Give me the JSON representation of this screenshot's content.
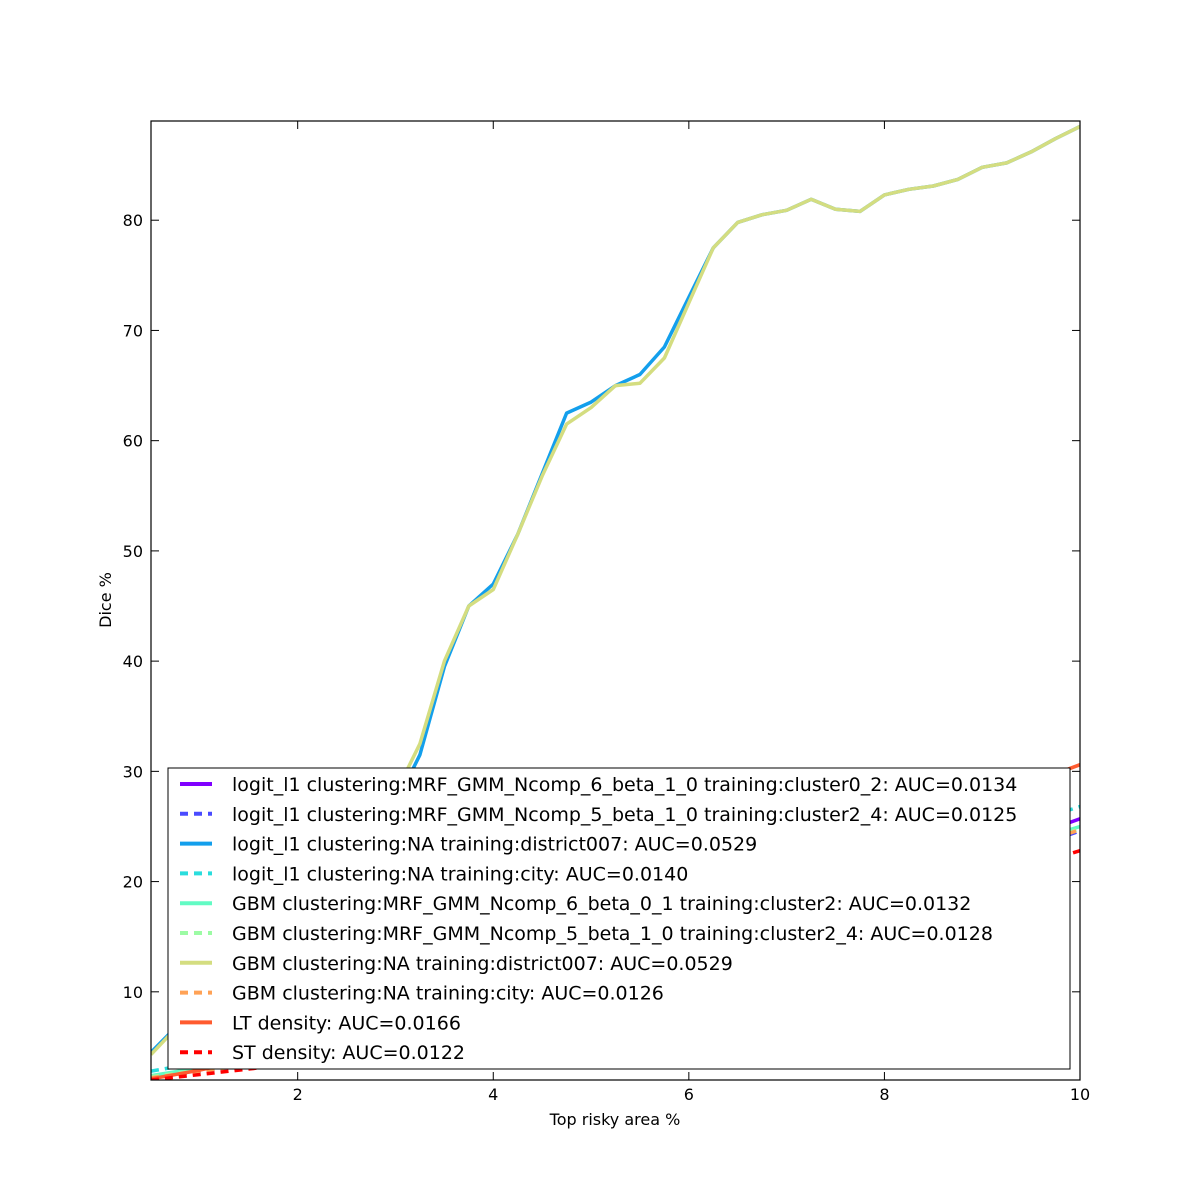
{
  "chart_data": {
    "type": "line",
    "xlabel": "Top risky area %",
    "ylabel": "Dice %",
    "xlim": [
      0.5,
      10
    ],
    "ylim": [
      2,
      89
    ],
    "xticks": [
      2,
      4,
      6,
      8,
      10
    ],
    "yticks": [
      10,
      20,
      30,
      40,
      50,
      60,
      70,
      80
    ],
    "legend_position": "lower-right",
    "grid": false,
    "series": [
      {
        "name": "logit_l1 clustering:MRF_GMM_Ncomp_6_beta_1_0 training:cluster0_2: AUC=0.0134",
        "color": "#8000ff",
        "dash": "solid",
        "x": [
          0.5,
          1,
          2,
          3,
          4,
          5,
          6,
          7,
          8,
          9,
          10
        ],
        "y": [
          2.3,
          3.0,
          4.2,
          6.0,
          8.0,
          10.5,
          13.5,
          16.5,
          19.5,
          22.5,
          25.7
        ]
      },
      {
        "name": "logit_l1 clustering:MRF_GMM_Ncomp_5_beta_1_0 training:cluster2_4: AUC=0.0125",
        "color": "#4a4bff",
        "dash": "dashed",
        "x": [
          0.5,
          1,
          2,
          3,
          4,
          5,
          6,
          7,
          8,
          9,
          10
        ],
        "y": [
          2.2,
          2.8,
          3.9,
          5.5,
          7.5,
          10.0,
          12.8,
          15.6,
          18.5,
          21.5,
          24.6
        ]
      },
      {
        "name": "logit_l1 clustering:NA training:district007: AUC=0.0529",
        "color": "#139fec",
        "dash": "solid",
        "x": [
          0.5,
          1.0,
          1.5,
          2.0,
          2.5,
          3.0,
          3.25,
          3.5,
          3.75,
          4.0,
          4.25,
          4.5,
          4.75,
          5.0,
          5.25,
          5.5,
          5.75,
          6.0,
          6.25,
          6.5,
          6.75,
          7.0,
          7.25,
          7.5,
          7.75,
          8.0,
          8.25,
          8.5,
          8.75,
          9.0,
          9.25,
          9.5,
          9.75,
          10.0
        ],
        "y": [
          4.5,
          9.0,
          13.5,
          17.5,
          21.5,
          27.0,
          31.5,
          39.5,
          45.0,
          47.0,
          51.5,
          57.0,
          62.5,
          63.5,
          65.0,
          66.0,
          68.5,
          73.0,
          77.5,
          79.8,
          80.5,
          80.9,
          81.9,
          81.0,
          80.8,
          82.3,
          82.8,
          83.1,
          83.7,
          84.8,
          85.2,
          86.2,
          87.4,
          88.5
        ]
      },
      {
        "name": "logit_l1 clustering:NA training:city: AUC=0.0140",
        "color": "#2adddd",
        "dash": "dashed",
        "x": [
          0.5,
          1,
          2,
          3,
          4,
          5,
          6,
          7,
          8,
          9,
          10
        ],
        "y": [
          2.8,
          3.6,
          5.0,
          7.0,
          9.5,
          12.5,
          15.5,
          18.5,
          21.5,
          24.0,
          26.8
        ]
      },
      {
        "name": "GBM clustering:MRF_GMM_Ncomp_6_beta_0_1 training:cluster2: AUC=0.0132",
        "color": "#62fbc4",
        "dash": "solid",
        "x": [
          0.5,
          1,
          2,
          3,
          4,
          5,
          6,
          7,
          8,
          9,
          10
        ],
        "y": [
          2.4,
          3.1,
          4.3,
          6.1,
          8.2,
          10.7,
          13.6,
          16.6,
          19.6,
          22.3,
          25.0
        ]
      },
      {
        "name": "GBM clustering:MRF_GMM_Ncomp_5_beta_1_0 training:cluster2_4: AUC=0.0128",
        "color": "#9cfba4",
        "dash": "dashed",
        "x": [
          0.5,
          1,
          2,
          3,
          4,
          5,
          6,
          7,
          8,
          9,
          10
        ],
        "y": [
          2.3,
          2.9,
          4.0,
          5.7,
          7.8,
          10.3,
          13.1,
          16.0,
          19.0,
          21.8,
          24.8
        ]
      },
      {
        "name": "GBM clustering:NA training:district007: AUC=0.0529",
        "color": "#d4dd80",
        "dash": "solid",
        "x": [
          0.5,
          1.0,
          1.5,
          2.0,
          2.5,
          3.0,
          3.25,
          3.5,
          3.75,
          4.0,
          4.25,
          4.5,
          4.75,
          5.0,
          5.25,
          5.5,
          5.75,
          6.0,
          6.25,
          6.5,
          6.75,
          7.0,
          7.25,
          7.5,
          7.75,
          8.0,
          8.25,
          8.5,
          8.75,
          9.0,
          9.25,
          9.5,
          9.75,
          10.0
        ],
        "y": [
          4.3,
          9.0,
          13.8,
          18.0,
          22.5,
          28.0,
          32.5,
          40.0,
          45.0,
          46.5,
          51.5,
          56.8,
          61.5,
          63.0,
          65.0,
          65.2,
          67.5,
          72.5,
          77.5,
          79.8,
          80.5,
          80.9,
          81.9,
          81.0,
          80.8,
          82.3,
          82.8,
          83.1,
          83.7,
          84.8,
          85.2,
          86.2,
          87.4,
          88.5
        ]
      },
      {
        "name": "GBM clustering:NA training:city: AUC=0.0126",
        "color": "#ffa256",
        "dash": "dashed",
        "x": [
          0.5,
          1,
          2,
          3,
          4,
          5,
          6,
          7,
          8,
          9,
          10
        ],
        "y": [
          2.2,
          2.8,
          3.9,
          5.5,
          7.6,
          10.1,
          13.0,
          16.0,
          19.0,
          21.8,
          24.7
        ]
      },
      {
        "name": "LT density: AUC=0.0166",
        "color": "#ff5b2f",
        "dash": "solid",
        "x": [
          0.5,
          1,
          2,
          3,
          4,
          5,
          6,
          7,
          8,
          9,
          10
        ],
        "y": [
          2.1,
          2.9,
          4.8,
          7.3,
          10.3,
          13.6,
          17.0,
          20.5,
          24.0,
          27.3,
          30.6
        ]
      },
      {
        "name": "ST density: AUC=0.0122",
        "color": "#ff0000",
        "dash": "dashed",
        "x": [
          0.5,
          1,
          2,
          3,
          4,
          5,
          6,
          7,
          8,
          9,
          10
        ],
        "y": [
          2.0,
          2.5,
          3.5,
          5.0,
          6.9,
          9.2,
          11.8,
          14.6,
          17.4,
          20.1,
          22.8
        ]
      }
    ]
  }
}
